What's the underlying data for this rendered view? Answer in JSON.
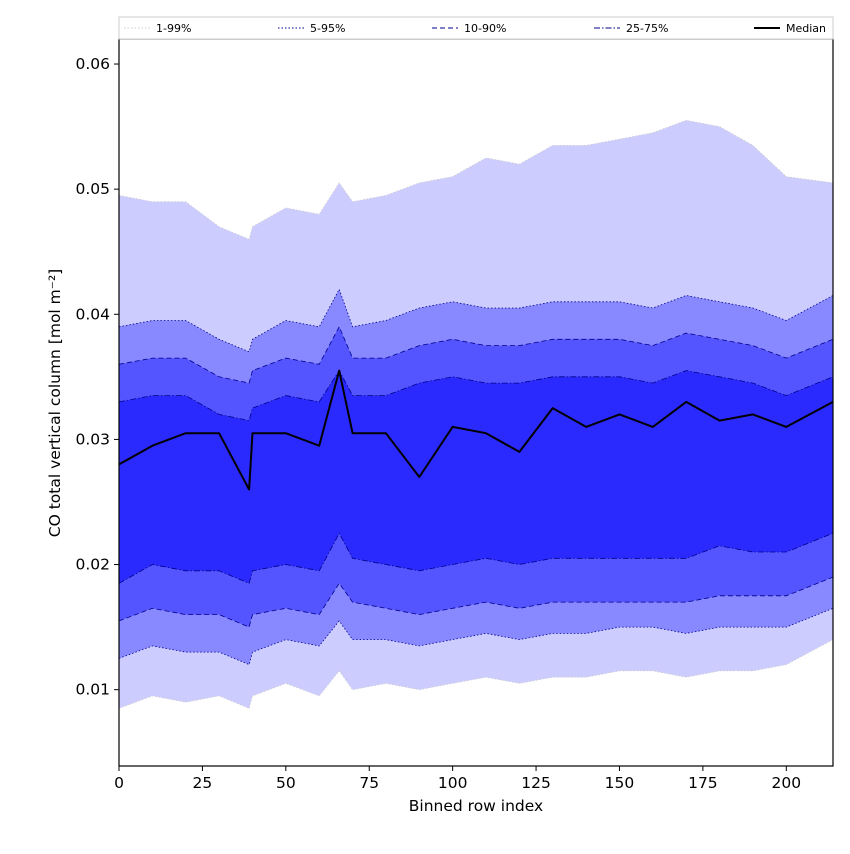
{
  "chart_data": {
    "type": "area",
    "xlabel": "Binned row index",
    "ylabel": "CO total vertical column [mol m⁻²]",
    "xlim": [
      0,
      214
    ],
    "ylim": [
      0.0039,
      0.062
    ],
    "x_ticks": [
      0,
      25,
      50,
      75,
      100,
      125,
      150,
      175,
      200
    ],
    "x_tick_labels": [
      "0",
      "25",
      "50",
      "75",
      "100",
      "125",
      "150",
      "175",
      "200"
    ],
    "y_ticks": [
      0.01,
      0.02,
      0.03,
      0.04,
      0.05,
      0.06
    ],
    "y_tick_labels": [
      "0.01",
      "0.02",
      "0.03",
      "0.04",
      "0.05",
      "0.06"
    ],
    "legend_position": "top",
    "x": [
      0,
      10,
      20,
      30,
      39,
      40,
      50,
      60,
      66,
      70,
      80,
      90,
      100,
      110,
      120,
      130,
      140,
      150,
      160,
      170,
      180,
      190,
      200,
      214
    ],
    "bands": [
      {
        "name": "1-99%",
        "color": "#ccccff",
        "line_color": "#cccccc",
        "line_style": "dotted",
        "lower": [
          0.0085,
          0.0095,
          0.009,
          0.0095,
          0.0085,
          0.0095,
          0.0105,
          0.0095,
          0.0115,
          0.01,
          0.0105,
          0.01,
          0.0105,
          0.011,
          0.0105,
          0.011,
          0.011,
          0.0115,
          0.0115,
          0.011,
          0.0115,
          0.0115,
          0.012,
          0.014
        ],
        "upper": [
          0.0495,
          0.049,
          0.049,
          0.047,
          0.046,
          0.047,
          0.0485,
          0.048,
          0.0505,
          0.049,
          0.0495,
          0.0505,
          0.051,
          0.0525,
          0.052,
          0.0535,
          0.0535,
          0.054,
          0.0545,
          0.0555,
          0.055,
          0.0535,
          0.051,
          0.0505
        ]
      },
      {
        "name": "5-95%",
        "color": "#8888ff",
        "line_color": "#00008b",
        "line_style": "dotted",
        "lower": [
          0.0125,
          0.0135,
          0.013,
          0.013,
          0.012,
          0.013,
          0.014,
          0.0135,
          0.0155,
          0.014,
          0.014,
          0.0135,
          0.014,
          0.0145,
          0.014,
          0.0145,
          0.0145,
          0.015,
          0.015,
          0.0145,
          0.015,
          0.015,
          0.015,
          0.0165
        ],
        "upper": [
          0.039,
          0.0395,
          0.0395,
          0.038,
          0.037,
          0.038,
          0.0395,
          0.039,
          0.042,
          0.039,
          0.0395,
          0.0405,
          0.041,
          0.0405,
          0.0405,
          0.041,
          0.041,
          0.041,
          0.0405,
          0.0415,
          0.041,
          0.0405,
          0.0395,
          0.0415
        ]
      },
      {
        "name": "10-90%",
        "color": "#5555ff",
        "line_color": "#00008b",
        "line_style": "dashed",
        "lower": [
          0.0155,
          0.0165,
          0.016,
          0.016,
          0.015,
          0.016,
          0.0165,
          0.016,
          0.0185,
          0.017,
          0.0165,
          0.016,
          0.0165,
          0.017,
          0.0165,
          0.017,
          0.017,
          0.017,
          0.017,
          0.017,
          0.0175,
          0.0175,
          0.0175,
          0.019
        ],
        "upper": [
          0.036,
          0.0365,
          0.0365,
          0.035,
          0.0345,
          0.0355,
          0.0365,
          0.036,
          0.039,
          0.0365,
          0.0365,
          0.0375,
          0.038,
          0.0375,
          0.0375,
          0.038,
          0.038,
          0.038,
          0.0375,
          0.0385,
          0.038,
          0.0375,
          0.0365,
          0.038
        ]
      },
      {
        "name": "25-75%",
        "color": "#2a2aff",
        "line_color": "#00008b",
        "line_style": "dashdot",
        "lower": [
          0.0185,
          0.02,
          0.0195,
          0.0195,
          0.0185,
          0.0195,
          0.02,
          0.0195,
          0.0225,
          0.0205,
          0.02,
          0.0195,
          0.02,
          0.0205,
          0.02,
          0.0205,
          0.0205,
          0.0205,
          0.0205,
          0.0205,
          0.0215,
          0.021,
          0.021,
          0.0225
        ],
        "upper": [
          0.033,
          0.0335,
          0.0335,
          0.032,
          0.0315,
          0.0325,
          0.0335,
          0.033,
          0.0355,
          0.0335,
          0.0335,
          0.0345,
          0.035,
          0.0345,
          0.0345,
          0.035,
          0.035,
          0.035,
          0.0345,
          0.0355,
          0.035,
          0.0345,
          0.0335,
          0.035
        ]
      }
    ],
    "series": [
      {
        "name": "Median",
        "color": "#000000",
        "values": [
          0.028,
          0.0295,
          0.0305,
          0.0305,
          0.026,
          0.0305,
          0.0305,
          0.0295,
          0.0355,
          0.0305,
          0.0305,
          0.027,
          0.031,
          0.0305,
          0.029,
          0.0325,
          0.031,
          0.032,
          0.031,
          0.033,
          0.0315,
          0.032,
          0.031,
          0.033
        ]
      }
    ]
  }
}
